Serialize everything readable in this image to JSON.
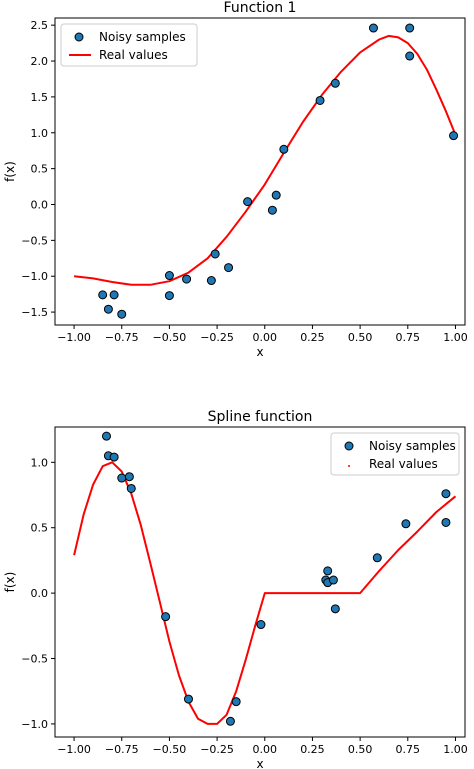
{
  "chart_data": [
    {
      "type": "scatter",
      "title": "Function 1",
      "xlabel": "x",
      "ylabel": "f(x)",
      "xlim": [
        -1.1,
        1.05
      ],
      "ylim": [
        -1.68,
        2.6
      ],
      "xticks": [
        -1.0,
        -0.75,
        -0.5,
        -0.25,
        0.0,
        0.25,
        0.5,
        0.75,
        1.0
      ],
      "xtick_labels": [
        "−1.00",
        "−0.75",
        "−0.50",
        "−0.25",
        "0.00",
        "0.25",
        "0.50",
        "0.75",
        "1.00"
      ],
      "yticks": [
        -1.5,
        -1.0,
        -0.5,
        0.0,
        0.5,
        1.0,
        1.5,
        2.0,
        2.5
      ],
      "ytick_labels": [
        "−1.5",
        "−1.0",
        "−0.5",
        "0.0",
        "0.5",
        "1.0",
        "1.5",
        "2.0",
        "2.5"
      ],
      "legend_position": "top-left",
      "series": [
        {
          "name": "Noisy samples",
          "kind": "scatter",
          "color": "#1f77b4",
          "points": [
            [
              -0.85,
              -1.26
            ],
            [
              -0.82,
              -1.46
            ],
            [
              -0.79,
              -1.26
            ],
            [
              -0.75,
              -1.53
            ],
            [
              -0.5,
              -0.99
            ],
            [
              -0.5,
              -1.27
            ],
            [
              -0.41,
              -1.04
            ],
            [
              -0.28,
              -1.06
            ],
            [
              -0.26,
              -0.69
            ],
            [
              -0.19,
              -0.88
            ],
            [
              -0.09,
              0.04
            ],
            [
              0.04,
              -0.08
            ],
            [
              0.06,
              0.13
            ],
            [
              0.1,
              0.77
            ],
            [
              0.29,
              1.45
            ],
            [
              0.37,
              1.69
            ],
            [
              0.57,
              2.46
            ],
            [
              0.76,
              2.46
            ],
            [
              0.76,
              2.07
            ],
            [
              0.99,
              0.96
            ]
          ]
        },
        {
          "name": "Real values",
          "kind": "line",
          "color": "#ff0000",
          "points": [
            [
              -1.0,
              -1.0
            ],
            [
              -0.9,
              -1.03
            ],
            [
              -0.8,
              -1.08
            ],
            [
              -0.7,
              -1.12
            ],
            [
              -0.6,
              -1.12
            ],
            [
              -0.5,
              -1.07
            ],
            [
              -0.4,
              -0.95
            ],
            [
              -0.3,
              -0.75
            ],
            [
              -0.2,
              -0.45
            ],
            [
              -0.1,
              -0.1
            ],
            [
              0.0,
              0.28
            ],
            [
              0.1,
              0.72
            ],
            [
              0.2,
              1.15
            ],
            [
              0.3,
              1.53
            ],
            [
              0.4,
              1.85
            ],
            [
              0.5,
              2.12
            ],
            [
              0.6,
              2.3
            ],
            [
              0.65,
              2.35
            ],
            [
              0.7,
              2.33
            ],
            [
              0.75,
              2.25
            ],
            [
              0.8,
              2.1
            ],
            [
              0.85,
              1.88
            ],
            [
              0.9,
              1.6
            ],
            [
              0.95,
              1.3
            ],
            [
              1.0,
              0.97
            ]
          ]
        }
      ]
    },
    {
      "type": "scatter",
      "title": "Spline function",
      "xlabel": "x",
      "ylabel": "f(x)",
      "xlim": [
        -1.1,
        1.05
      ],
      "ylim": [
        -1.1,
        1.27
      ],
      "xticks": [
        -1.0,
        -0.75,
        -0.5,
        -0.25,
        0.0,
        0.25,
        0.5,
        0.75,
        1.0
      ],
      "xtick_labels": [
        "−1.00",
        "−0.75",
        "−0.50",
        "−0.25",
        "0.00",
        "0.25",
        "0.50",
        "0.75",
        "1.00"
      ],
      "yticks": [
        -1.0,
        -0.5,
        0.0,
        0.5,
        1.0
      ],
      "ytick_labels": [
        "−1.0",
        "−0.5",
        "0.0",
        "0.5",
        "1.0"
      ],
      "legend_position": "top-right",
      "series": [
        {
          "name": "Noisy samples",
          "kind": "scatter",
          "color": "#1f77b4",
          "points": [
            [
              -0.83,
              1.2
            ],
            [
              -0.82,
              1.05
            ],
            [
              -0.79,
              1.04
            ],
            [
              -0.75,
              0.88
            ],
            [
              -0.71,
              0.89
            ],
            [
              -0.7,
              0.8
            ],
            [
              -0.52,
              -0.18
            ],
            [
              -0.4,
              -0.81
            ],
            [
              -0.18,
              -0.98
            ],
            [
              -0.15,
              -0.83
            ],
            [
              -0.02,
              -0.24
            ],
            [
              0.32,
              0.1
            ],
            [
              0.33,
              0.17
            ],
            [
              0.33,
              0.08
            ],
            [
              0.36,
              0.1
            ],
            [
              0.37,
              -0.12
            ],
            [
              0.59,
              0.27
            ],
            [
              0.74,
              0.53
            ],
            [
              0.95,
              0.76
            ],
            [
              0.95,
              0.54
            ]
          ]
        },
        {
          "name": "Real values",
          "kind": "line",
          "color": "#ff0000",
          "points": [
            [
              -1.0,
              0.29
            ],
            [
              -0.95,
              0.6
            ],
            [
              -0.9,
              0.83
            ],
            [
              -0.85,
              0.97
            ],
            [
              -0.8,
              1.0
            ],
            [
              -0.75,
              0.93
            ],
            [
              -0.7,
              0.76
            ],
            [
              -0.65,
              0.52
            ],
            [
              -0.6,
              0.23
            ],
            [
              -0.55,
              -0.07
            ],
            [
              -0.5,
              -0.37
            ],
            [
              -0.45,
              -0.63
            ],
            [
              -0.4,
              -0.83
            ],
            [
              -0.35,
              -0.96
            ],
            [
              -0.3,
              -1.0
            ],
            [
              -0.25,
              -1.0
            ],
            [
              -0.2,
              -0.93
            ],
            [
              -0.15,
              -0.75
            ],
            [
              -0.1,
              -0.51
            ],
            [
              -0.05,
              -0.25
            ],
            [
              0.0,
              0.0
            ],
            [
              0.5,
              0.0
            ],
            [
              0.6,
              0.17
            ],
            [
              0.7,
              0.33
            ],
            [
              0.8,
              0.47
            ],
            [
              0.9,
              0.62
            ],
            [
              1.0,
              0.74
            ]
          ]
        }
      ]
    }
  ]
}
